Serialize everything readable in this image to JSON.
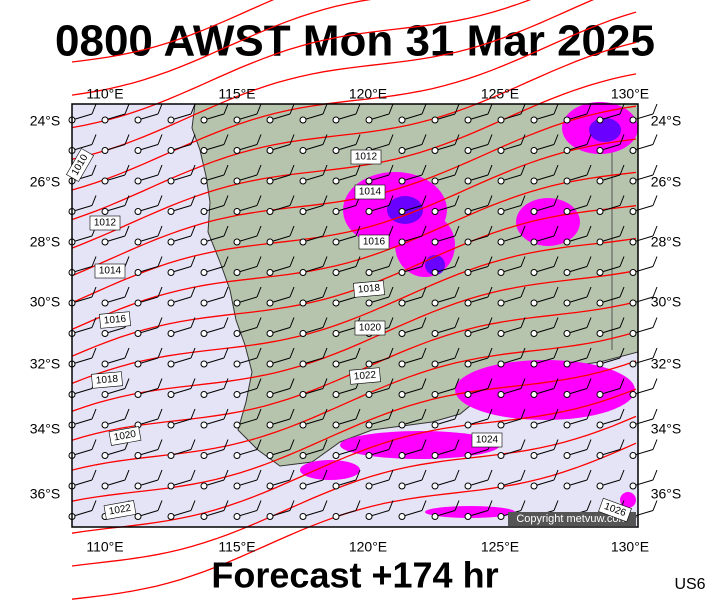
{
  "header": {
    "title": "0800 AWST Mon 31 Mar 2025"
  },
  "map": {
    "longitude_labels": [
      "110°E",
      "115°E",
      "120°E",
      "125°E",
      "130°E"
    ],
    "latitude_labels": [
      "24°S",
      "26°S",
      "28°S",
      "30°S",
      "32°S",
      "34°S",
      "36°S"
    ],
    "isobar_labels": [
      "1010",
      "1012",
      "1014",
      "1016",
      "1018",
      "1020",
      "1022",
      "1012",
      "1014",
      "1016",
      "1018",
      "1020",
      "1022",
      "1024",
      "1026"
    ],
    "copyright": "Copyright metvuw.com"
  },
  "footer": {
    "forecast": "Forecast +174 hr",
    "code": "US6"
  }
}
